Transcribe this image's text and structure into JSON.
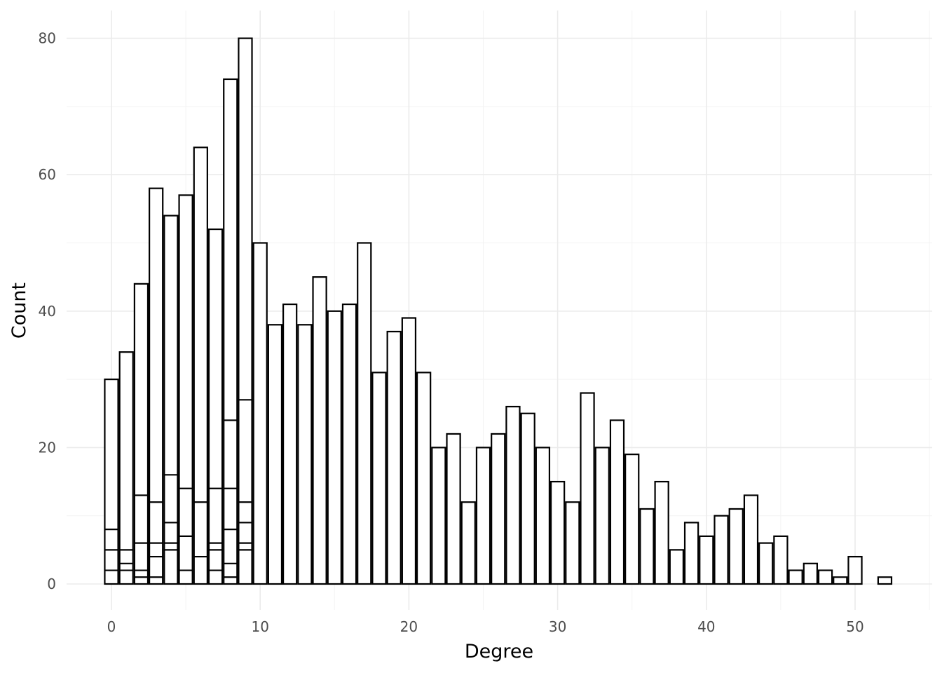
{
  "chart_data": {
    "type": "bar",
    "subtype": "overlapping histogram (stacked sub-groups at low degree)",
    "title": "",
    "xlabel": "Degree",
    "ylabel": "Count",
    "xlim": [
      -1,
      55
    ],
    "ylim": [
      -4,
      84
    ],
    "xticks": [
      0,
      10,
      20,
      30,
      40,
      50
    ],
    "yticks": [
      0,
      20,
      40,
      60,
      80
    ],
    "grid": true,
    "legend": "none",
    "bar_fill": "#ffffff",
    "bar_outline": "#000000",
    "bins": [
      {
        "x": 0,
        "count": 30
      },
      {
        "x": 1,
        "count": 34
      },
      {
        "x": 2,
        "count": 44
      },
      {
        "x": 3,
        "count": 58
      },
      {
        "x": 4,
        "count": 54
      },
      {
        "x": 5,
        "count": 57
      },
      {
        "x": 6,
        "count": 64
      },
      {
        "x": 7,
        "count": 52
      },
      {
        "x": 8,
        "count": 74
      },
      {
        "x": 9,
        "count": 80
      },
      {
        "x": 10,
        "count": 50
      },
      {
        "x": 11,
        "count": 38
      },
      {
        "x": 12,
        "count": 41
      },
      {
        "x": 13,
        "count": 38
      },
      {
        "x": 14,
        "count": 45
      },
      {
        "x": 15,
        "count": 40
      },
      {
        "x": 16,
        "count": 41
      },
      {
        "x": 17,
        "count": 50
      },
      {
        "x": 18,
        "count": 31
      },
      {
        "x": 19,
        "count": 37
      },
      {
        "x": 20,
        "count": 39
      },
      {
        "x": 21,
        "count": 31
      },
      {
        "x": 22,
        "count": 20
      },
      {
        "x": 23,
        "count": 22
      },
      {
        "x": 24,
        "count": 12
      },
      {
        "x": 25,
        "count": 20
      },
      {
        "x": 26,
        "count": 22
      },
      {
        "x": 27,
        "count": 26
      },
      {
        "x": 28,
        "count": 25
      },
      {
        "x": 29,
        "count": 20
      },
      {
        "x": 30,
        "count": 15
      },
      {
        "x": 31,
        "count": 12
      },
      {
        "x": 32,
        "count": 28
      },
      {
        "x": 33,
        "count": 20
      },
      {
        "x": 34,
        "count": 24
      },
      {
        "x": 35,
        "count": 19
      },
      {
        "x": 36,
        "count": 11
      },
      {
        "x": 37,
        "count": 15
      },
      {
        "x": 38,
        "count": 5
      },
      {
        "x": 39,
        "count": 9
      },
      {
        "x": 40,
        "count": 7
      },
      {
        "x": 41,
        "count": 10
      },
      {
        "x": 42,
        "count": 11
      },
      {
        "x": 43,
        "count": 13
      },
      {
        "x": 44,
        "count": 6
      },
      {
        "x": 45,
        "count": 7
      },
      {
        "x": 46,
        "count": 2
      },
      {
        "x": 47,
        "count": 3
      },
      {
        "x": 48,
        "count": 2
      },
      {
        "x": 49,
        "count": 1
      },
      {
        "x": 50,
        "count": 4
      },
      {
        "x": 52,
        "count": 1
      }
    ],
    "inner_segments": [
      {
        "x": 0,
        "levels": [
          2,
          5,
          8
        ]
      },
      {
        "x": 1,
        "levels": [
          2,
          3,
          5
        ]
      },
      {
        "x": 2,
        "levels": [
          1,
          2,
          6,
          13
        ]
      },
      {
        "x": 3,
        "levels": [
          1,
          4,
          6,
          12
        ]
      },
      {
        "x": 4,
        "levels": [
          5,
          6,
          9,
          16
        ]
      },
      {
        "x": 5,
        "levels": [
          2,
          7,
          14
        ]
      },
      {
        "x": 6,
        "levels": [
          4,
          12
        ]
      },
      {
        "x": 7,
        "levels": [
          2,
          5,
          6,
          14
        ]
      },
      {
        "x": 8,
        "levels": [
          1,
          3,
          8,
          14,
          24
        ]
      },
      {
        "x": 9,
        "levels": [
          5,
          6,
          9,
          12,
          27
        ]
      }
    ]
  }
}
